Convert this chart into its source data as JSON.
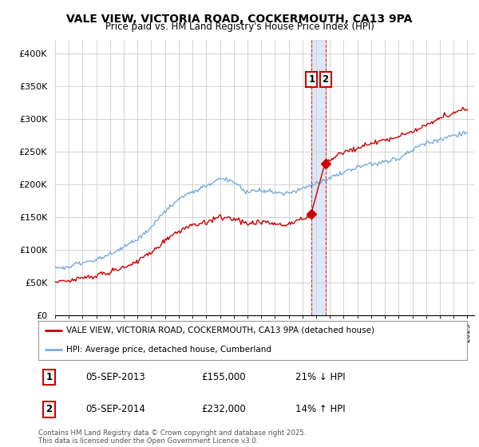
{
  "title": "VALE VIEW, VICTORIA ROAD, COCKERMOUTH, CA13 9PA",
  "subtitle": "Price paid vs. HM Land Registry's House Price Index (HPI)",
  "ylim": [
    0,
    420000
  ],
  "yticks": [
    0,
    50000,
    100000,
    150000,
    200000,
    250000,
    300000,
    350000,
    400000
  ],
  "ytick_labels": [
    "£0",
    "£50K",
    "£100K",
    "£150K",
    "£200K",
    "£250K",
    "£300K",
    "£350K",
    "£400K"
  ],
  "legend_line1": "VALE VIEW, VICTORIA ROAD, COCKERMOUTH, CA13 9PA (detached house)",
  "legend_line2": "HPI: Average price, detached house, Cumberland",
  "sale1_date": "05-SEP-2013",
  "sale1_price": "£155,000",
  "sale1_hpi": "21% ↓ HPI",
  "sale2_date": "05-SEP-2014",
  "sale2_price": "£232,000",
  "sale2_hpi": "14% ↑ HPI",
  "footer": "Contains HM Land Registry data © Crown copyright and database right 2025.\nThis data is licensed under the Open Government Licence v3.0.",
  "line1_color": "#cc0000",
  "line2_color": "#7aaddb",
  "vline_color": "#cc0000",
  "shade_color": "#c8d8ec",
  "bg_color": "#ffffff",
  "grid_color": "#cccccc",
  "annotation_box_color": "#cc0000",
  "sale1_vline_x": 2013.67,
  "sale2_vline_x": 2014.67,
  "sale1_dot_y": 155000,
  "sale2_dot_y": 232000,
  "xmin": 1995,
  "xmax": 2025.5
}
